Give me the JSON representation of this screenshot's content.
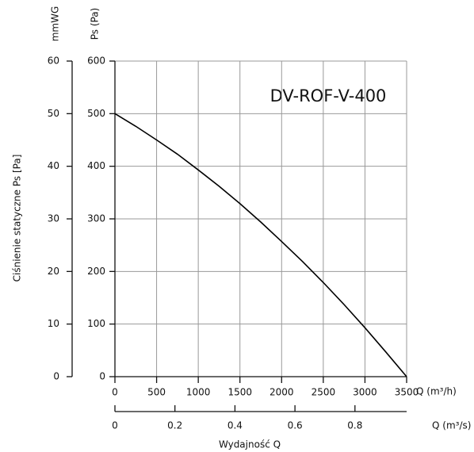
{
  "chart_data": {
    "type": "line",
    "annotation": "DV-ROF-V-400",
    "ylabel": "Ciśnienie statyczne Ps [Pa]",
    "y_unit": "Ps (Pa)",
    "y2_unit": "mmWG",
    "xlabel": "Q (m³/h)",
    "x2label": "Q (m³/s)",
    "x_title": "Wydajność Q",
    "x": [
      0,
      250,
      500,
      750,
      1000,
      1250,
      1500,
      1750,
      2000,
      2250,
      2500,
      2750,
      3000,
      3250,
      3500
    ],
    "series": [
      {
        "color": "#000000",
        "values": [
          500,
          476,
          450,
          423,
          393,
          362,
          329,
          294,
          257,
          219,
          179,
          137,
          93,
          47,
          0
        ]
      }
    ],
    "xlim": [
      0,
      3500
    ],
    "xticks": [
      0,
      500,
      1000,
      1500,
      2000,
      2500,
      3000,
      3500
    ],
    "ylim": [
      0,
      600
    ],
    "yticks": [
      0,
      100,
      200,
      300,
      400,
      500,
      600
    ],
    "y2lim": [
      0,
      60
    ],
    "y2ticks": [
      0,
      10,
      20,
      30,
      40,
      50,
      60
    ],
    "x2lim": [
      0,
      0.9722
    ],
    "x2ticks": [
      0,
      0.2,
      0.4,
      0.6,
      0.8
    ],
    "grid": true
  }
}
